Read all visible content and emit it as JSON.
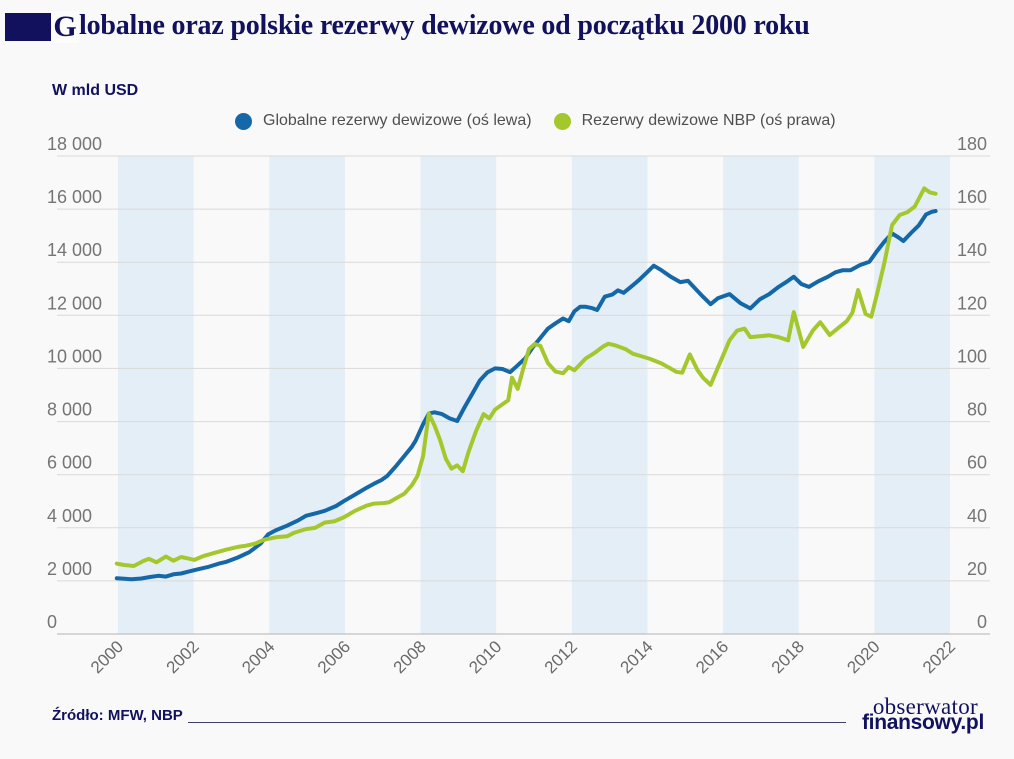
{
  "header": {
    "title_first_letter": "G",
    "title_rest": "lobalne oraz polskie rezerwy dewizowe od początku 2000 roku"
  },
  "chart": {
    "unit_label": "W mld USD",
    "legend": [
      {
        "label": "Globalne rezerwy dewizowe (oś lewa)",
        "color": "#1568a8"
      },
      {
        "label": "Rezerwy dewizowe NBP (oś prawa)",
        "color": "#a5c72e"
      }
    ]
  },
  "colors": {
    "navy": "#11115e",
    "global_line": "#1568a8",
    "nbp_line": "#a5c72e",
    "band": "#e4eef7",
    "grid": "#d9d9d9",
    "axis": "#b4b4b4",
    "background": "#f9f9f9"
  },
  "chart_data": {
    "type": "line",
    "title": "Globalne oraz polskie rezerwy dewizowe od początku 2000 roku",
    "unit": "W mld USD",
    "legend_position": "top",
    "grid": true,
    "x_range": [
      2000,
      2022
    ],
    "x_tick_values": [
      2000,
      2002,
      2004,
      2006,
      2008,
      2010,
      2012,
      2014,
      2016,
      2018,
      2020,
      2022
    ],
    "x_tick_labels": [
      "2000",
      "2002",
      "2004",
      "2006",
      "2008",
      "2010",
      "2012",
      "2014",
      "2016",
      "2018",
      "2020",
      "2022"
    ],
    "left_axis": {
      "label": "Globalne rezerwy dewizowe (oś lewa)",
      "range": [
        0,
        18000
      ],
      "tick_values": [
        0,
        2000,
        4000,
        6000,
        8000,
        10000,
        12000,
        14000,
        16000,
        18000
      ],
      "tick_labels": [
        "0",
        "2 000",
        "4 000",
        "6 000",
        "8 000",
        "10 000",
        "12 000",
        "14 000",
        "16 000",
        "18 000"
      ]
    },
    "right_axis": {
      "label": "Rezerwy dewizowe NBP (oś prawa)",
      "range": [
        0,
        180
      ],
      "tick_values": [
        0,
        20,
        40,
        60,
        80,
        100,
        120,
        140,
        160,
        180
      ],
      "tick_labels": [
        "0",
        "20",
        "40",
        "60",
        "80",
        "100",
        "120",
        "140",
        "160",
        "180"
      ]
    },
    "shaded_bands": [
      [
        2000,
        2002
      ],
      [
        2004,
        2006
      ],
      [
        2008,
        2010
      ],
      [
        2012,
        2014
      ],
      [
        2016,
        2018
      ],
      [
        2020,
        2022
      ]
    ],
    "series": [
      {
        "name": "Globalne rezerwy dewizowe (oś lewa)",
        "axis": "left",
        "color": "#1568a8",
        "points": [
          [
            2000.1,
            2100
          ],
          [
            2000.3,
            2080
          ],
          [
            2000.5,
            2060
          ],
          [
            2000.75,
            2090
          ],
          [
            2001.0,
            2150
          ],
          [
            2001.2,
            2190
          ],
          [
            2001.4,
            2160
          ],
          [
            2001.6,
            2250
          ],
          [
            2001.8,
            2280
          ],
          [
            2002.0,
            2350
          ],
          [
            2002.2,
            2420
          ],
          [
            2002.5,
            2520
          ],
          [
            2002.8,
            2650
          ],
          [
            2003.0,
            2720
          ],
          [
            2003.3,
            2880
          ],
          [
            2003.6,
            3080
          ],
          [
            2003.9,
            3400
          ],
          [
            2004.1,
            3750
          ],
          [
            2004.3,
            3900
          ],
          [
            2004.6,
            4080
          ],
          [
            2004.9,
            4280
          ],
          [
            2005.1,
            4450
          ],
          [
            2005.4,
            4560
          ],
          [
            2005.6,
            4640
          ],
          [
            2005.9,
            4820
          ],
          [
            2006.1,
            5000
          ],
          [
            2006.4,
            5250
          ],
          [
            2006.7,
            5500
          ],
          [
            2006.9,
            5660
          ],
          [
            2007.1,
            5800
          ],
          [
            2007.25,
            5950
          ],
          [
            2007.5,
            6350
          ],
          [
            2007.7,
            6700
          ],
          [
            2007.9,
            7050
          ],
          [
            2008.0,
            7280
          ],
          [
            2008.2,
            7900
          ],
          [
            2008.35,
            8300
          ],
          [
            2008.5,
            8350
          ],
          [
            2008.7,
            8280
          ],
          [
            2008.9,
            8120
          ],
          [
            2009.1,
            8020
          ],
          [
            2009.3,
            8550
          ],
          [
            2009.5,
            9050
          ],
          [
            2009.7,
            9550
          ],
          [
            2009.9,
            9850
          ],
          [
            2010.1,
            10000
          ],
          [
            2010.3,
            9980
          ],
          [
            2010.5,
            9860
          ],
          [
            2010.7,
            10120
          ],
          [
            2010.9,
            10380
          ],
          [
            2011.1,
            10800
          ],
          [
            2011.3,
            11150
          ],
          [
            2011.5,
            11500
          ],
          [
            2011.7,
            11700
          ],
          [
            2011.9,
            11880
          ],
          [
            2012.05,
            11780
          ],
          [
            2012.2,
            12150
          ],
          [
            2012.35,
            12320
          ],
          [
            2012.5,
            12320
          ],
          [
            2012.65,
            12280
          ],
          [
            2012.8,
            12200
          ],
          [
            2013.0,
            12700
          ],
          [
            2013.2,
            12780
          ],
          [
            2013.35,
            12940
          ],
          [
            2013.5,
            12850
          ],
          [
            2013.7,
            13080
          ],
          [
            2013.9,
            13320
          ],
          [
            2014.1,
            13590
          ],
          [
            2014.3,
            13870
          ],
          [
            2014.5,
            13700
          ],
          [
            2014.75,
            13450
          ],
          [
            2015.0,
            13250
          ],
          [
            2015.2,
            13300
          ],
          [
            2015.4,
            13000
          ],
          [
            2015.6,
            12700
          ],
          [
            2015.8,
            12420
          ],
          [
            2016.0,
            12650
          ],
          [
            2016.3,
            12800
          ],
          [
            2016.6,
            12450
          ],
          [
            2016.85,
            12260
          ],
          [
            2017.1,
            12600
          ],
          [
            2017.35,
            12800
          ],
          [
            2017.6,
            13070
          ],
          [
            2017.85,
            13300
          ],
          [
            2018.0,
            13450
          ],
          [
            2018.2,
            13180
          ],
          [
            2018.4,
            13070
          ],
          [
            2018.65,
            13280
          ],
          [
            2018.9,
            13450
          ],
          [
            2019.1,
            13620
          ],
          [
            2019.3,
            13700
          ],
          [
            2019.5,
            13700
          ],
          [
            2019.75,
            13890
          ],
          [
            2020.0,
            14020
          ],
          [
            2020.2,
            14420
          ],
          [
            2020.4,
            14780
          ],
          [
            2020.6,
            15080
          ],
          [
            2020.75,
            14950
          ],
          [
            2020.9,
            14800
          ],
          [
            2021.1,
            15100
          ],
          [
            2021.3,
            15380
          ],
          [
            2021.5,
            15800
          ],
          [
            2021.65,
            15900
          ],
          [
            2021.75,
            15930
          ]
        ]
      },
      {
        "name": "Rezerwy dewizowe NBP (oś prawa)",
        "axis": "right",
        "color": "#a5c72e",
        "points": [
          [
            2000.1,
            26.5
          ],
          [
            2000.3,
            26.0
          ],
          [
            2000.55,
            25.6
          ],
          [
            2000.8,
            27.5
          ],
          [
            2000.95,
            28.3
          ],
          [
            2001.15,
            27.0
          ],
          [
            2001.4,
            29.2
          ],
          [
            2001.6,
            27.6
          ],
          [
            2001.8,
            29.0
          ],
          [
            2002.0,
            28.4
          ],
          [
            2002.15,
            27.9
          ],
          [
            2002.4,
            29.4
          ],
          [
            2002.7,
            30.6
          ],
          [
            2003.0,
            31.8
          ],
          [
            2003.3,
            32.8
          ],
          [
            2003.5,
            33.2
          ],
          [
            2003.75,
            34.0
          ],
          [
            2004.0,
            35.5
          ],
          [
            2004.3,
            36.4
          ],
          [
            2004.6,
            36.8
          ],
          [
            2004.8,
            38.2
          ],
          [
            2005.1,
            39.5
          ],
          [
            2005.35,
            40.0
          ],
          [
            2005.6,
            42.0
          ],
          [
            2005.85,
            42.4
          ],
          [
            2006.1,
            43.9
          ],
          [
            2006.4,
            46.4
          ],
          [
            2006.7,
            48.3
          ],
          [
            2006.9,
            49.1
          ],
          [
            2007.15,
            49.3
          ],
          [
            2007.3,
            49.6
          ],
          [
            2007.5,
            51.2
          ],
          [
            2007.7,
            52.8
          ],
          [
            2007.9,
            56.0
          ],
          [
            2008.05,
            59.5
          ],
          [
            2008.2,
            67.0
          ],
          [
            2008.35,
            83.0
          ],
          [
            2008.5,
            78.5
          ],
          [
            2008.65,
            73.0
          ],
          [
            2008.8,
            66.0
          ],
          [
            2008.95,
            62.3
          ],
          [
            2009.1,
            63.5
          ],
          [
            2009.25,
            61.3
          ],
          [
            2009.4,
            68.5
          ],
          [
            2009.6,
            76.5
          ],
          [
            2009.8,
            82.8
          ],
          [
            2009.95,
            81.2
          ],
          [
            2010.1,
            84.5
          ],
          [
            2010.3,
            86.5
          ],
          [
            2010.45,
            88.0
          ],
          [
            2010.55,
            96.5
          ],
          [
            2010.7,
            92.3
          ],
          [
            2010.85,
            100.0
          ],
          [
            2011.0,
            107.3
          ],
          [
            2011.15,
            109.2
          ],
          [
            2011.3,
            108.5
          ],
          [
            2011.5,
            102.0
          ],
          [
            2011.7,
            98.8
          ],
          [
            2011.9,
            98.2
          ],
          [
            2012.05,
            100.5
          ],
          [
            2012.2,
            99.3
          ],
          [
            2012.5,
            103.8
          ],
          [
            2012.75,
            106.0
          ],
          [
            2012.95,
            108.2
          ],
          [
            2013.1,
            109.3
          ],
          [
            2013.3,
            108.6
          ],
          [
            2013.55,
            107.3
          ],
          [
            2013.75,
            105.5
          ],
          [
            2013.95,
            104.7
          ],
          [
            2014.2,
            103.6
          ],
          [
            2014.5,
            101.9
          ],
          [
            2014.7,
            100.3
          ],
          [
            2014.9,
            98.7
          ],
          [
            2015.05,
            98.4
          ],
          [
            2015.25,
            105.3
          ],
          [
            2015.45,
            99.5
          ],
          [
            2015.6,
            96.5
          ],
          [
            2015.8,
            93.8
          ],
          [
            2016.0,
            100.5
          ],
          [
            2016.15,
            105.5
          ],
          [
            2016.3,
            110.6
          ],
          [
            2016.5,
            114.2
          ],
          [
            2016.7,
            115.0
          ],
          [
            2016.85,
            111.8
          ],
          [
            2017.1,
            112.1
          ],
          [
            2017.35,
            112.5
          ],
          [
            2017.6,
            111.8
          ],
          [
            2017.85,
            110.6
          ],
          [
            2018.0,
            121.2
          ],
          [
            2018.25,
            108.1
          ],
          [
            2018.5,
            114.2
          ],
          [
            2018.7,
            117.4
          ],
          [
            2018.95,
            112.6
          ],
          [
            2019.2,
            115.5
          ],
          [
            2019.4,
            117.8
          ],
          [
            2019.55,
            121.0
          ],
          [
            2019.7,
            129.5
          ],
          [
            2019.9,
            120.5
          ],
          [
            2020.05,
            119.5
          ],
          [
            2020.2,
            128.0
          ],
          [
            2020.4,
            140.0
          ],
          [
            2020.6,
            154.0
          ],
          [
            2020.8,
            157.8
          ],
          [
            2021.0,
            158.8
          ],
          [
            2021.2,
            161.0
          ],
          [
            2021.45,
            167.8
          ],
          [
            2021.6,
            166.3
          ],
          [
            2021.75,
            165.8
          ]
        ]
      }
    ]
  },
  "footer": {
    "source": "Źródło: MFW, NBP",
    "logo_line1": "obserwator",
    "logo_line2": "finansowy.pl"
  }
}
